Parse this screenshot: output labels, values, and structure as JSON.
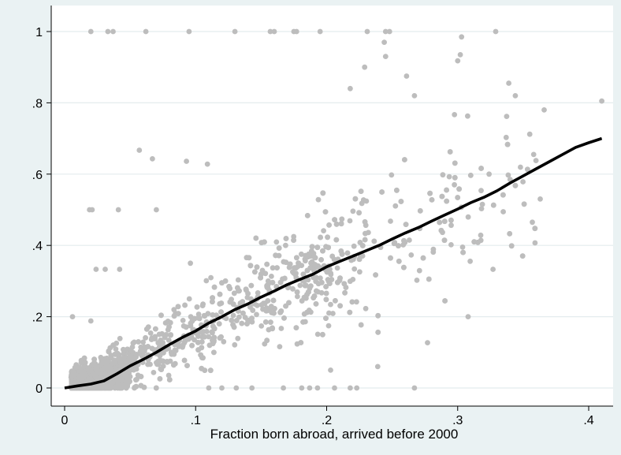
{
  "chart_data": {
    "type": "scatter",
    "title": "",
    "xlabel": "Fraction born abroad, arrived before 2000",
    "ylabel": "",
    "xlim": [
      0,
      0.41
    ],
    "ylim": [
      0,
      1
    ],
    "grid": true,
    "x_ticks": [
      0,
      0.1,
      0.2,
      0.3,
      0.4
    ],
    "x_tick_labels": [
      "0",
      ".1",
      ".2",
      ".3",
      ".4"
    ],
    "y_ticks": [
      0,
      0.2,
      0.4,
      0.6,
      0.8,
      1
    ],
    "y_tick_labels": [
      "0",
      ".2",
      ".4",
      ".6",
      ".8",
      "1"
    ],
    "colors": {
      "background": "#eaf2f3",
      "plot": "#ffffff",
      "points": "#bdbdbd",
      "fit_line": "#000000",
      "grid": "#e4ecee"
    },
    "series": [
      {
        "kind": "scatter",
        "points_outliers": [
          [
            0.02,
            1
          ],
          [
            0.033,
            1
          ],
          [
            0.037,
            1
          ],
          [
            0.062,
            1
          ],
          [
            0.095,
            1
          ],
          [
            0.13,
            1
          ],
          [
            0.157,
            1
          ],
          [
            0.16,
            1
          ],
          [
            0.175,
            1
          ],
          [
            0.177,
            1
          ],
          [
            0.195,
            1
          ],
          [
            0.231,
            1
          ],
          [
            0.245,
            1
          ],
          [
            0.248,
            1
          ],
          [
            0.329,
            1
          ],
          [
            0.019,
            0.5
          ],
          [
            0.021,
            0.5
          ],
          [
            0.041,
            0.5
          ],
          [
            0.07,
            0.5
          ],
          [
            0.096,
            0.35
          ],
          [
            0.024,
            0.333
          ],
          [
            0.031,
            0.333
          ],
          [
            0.042,
            0.333
          ],
          [
            0.006,
            0.2
          ],
          [
            0.02,
            0.188
          ],
          [
            0.057,
            0.667
          ],
          [
            0.067,
            0.643
          ],
          [
            0.093,
            0.636
          ],
          [
            0.109,
            0.628
          ],
          [
            0.244,
            0.97
          ],
          [
            0.303,
            0.985
          ],
          [
            0.302,
            0.935
          ],
          [
            0.3,
            0.918
          ],
          [
            0.245,
            0.93
          ],
          [
            0.229,
            0.9
          ],
          [
            0.218,
            0.84
          ],
          [
            0.261,
            0.875
          ],
          [
            0.267,
            0.82
          ],
          [
            0.344,
            0.82
          ],
          [
            0.339,
            0.855
          ],
          [
            0.366,
            0.78
          ],
          [
            0.41,
            0.805
          ],
          [
            0.355,
            0.712
          ],
          [
            0.358,
            0.655
          ],
          [
            0.357,
            0.465
          ],
          [
            0.363,
            0.53
          ],
          [
            0.34,
            0.585
          ],
          [
            0.324,
            0.6
          ],
          [
            0.327,
            0.333
          ],
          [
            0.308,
            0.2
          ],
          [
            0.277,
            0.127
          ],
          [
            0.267,
            0.0
          ],
          [
            0.239,
            0.06
          ],
          [
            0.203,
            0.05
          ],
          [
            0.181,
            0.0
          ],
          [
            0.167,
            0.0
          ],
          [
            0.143,
            0.0
          ],
          [
            0.131,
            0.0
          ],
          [
            0.12,
            0.0
          ],
          [
            0.11,
            0.0
          ],
          [
            0.223,
            0.0
          ],
          [
            0.218,
            0.0
          ],
          [
            0.193,
            0.0
          ],
          [
            0.187,
            0.0
          ],
          [
            0.206,
            0.0
          ]
        ]
      },
      {
        "kind": "line",
        "points": [
          [
            0.0,
            0.0
          ],
          [
            0.01,
            0.006
          ],
          [
            0.02,
            0.011
          ],
          [
            0.03,
            0.02
          ],
          [
            0.04,
            0.04
          ],
          [
            0.05,
            0.062
          ],
          [
            0.06,
            0.08
          ],
          [
            0.07,
            0.1
          ],
          [
            0.08,
            0.122
          ],
          [
            0.09,
            0.142
          ],
          [
            0.1,
            0.16
          ],
          [
            0.11,
            0.182
          ],
          [
            0.12,
            0.2
          ],
          [
            0.13,
            0.22
          ],
          [
            0.14,
            0.236
          ],
          [
            0.15,
            0.255
          ],
          [
            0.16,
            0.272
          ],
          [
            0.17,
            0.29
          ],
          [
            0.18,
            0.305
          ],
          [
            0.19,
            0.32
          ],
          [
            0.2,
            0.34
          ],
          [
            0.21,
            0.355
          ],
          [
            0.22,
            0.37
          ],
          [
            0.23,
            0.385
          ],
          [
            0.24,
            0.4
          ],
          [
            0.25,
            0.418
          ],
          [
            0.26,
            0.435
          ],
          [
            0.27,
            0.45
          ],
          [
            0.28,
            0.468
          ],
          [
            0.29,
            0.485
          ],
          [
            0.3,
            0.502
          ],
          [
            0.31,
            0.52
          ],
          [
            0.32,
            0.535
          ],
          [
            0.33,
            0.553
          ],
          [
            0.34,
            0.575
          ],
          [
            0.35,
            0.595
          ],
          [
            0.36,
            0.615
          ],
          [
            0.37,
            0.635
          ],
          [
            0.38,
            0.655
          ],
          [
            0.39,
            0.675
          ],
          [
            0.4,
            0.688
          ],
          [
            0.41,
            0.7
          ]
        ]
      }
    ]
  }
}
